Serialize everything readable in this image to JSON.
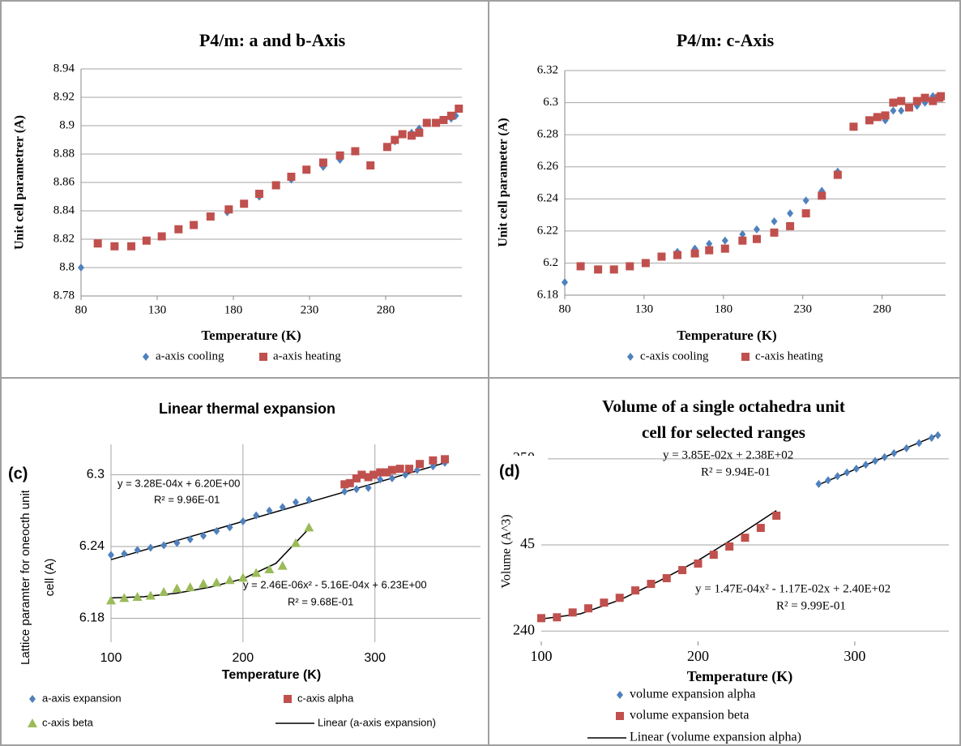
{
  "chart_data": [
    {
      "type": "scatter",
      "title": "P4/m: a and b-Axis",
      "x_label": "Temperature (K)",
      "y_label": "Unit cell parametrer (A)",
      "xlim": [
        80,
        330
      ],
      "xticks": [
        80,
        130,
        180,
        230,
        280
      ],
      "ylim": [
        8.78,
        8.94
      ],
      "yticks": [
        8.78,
        8.8,
        8.82,
        8.84,
        8.86,
        8.88,
        8.9,
        8.92,
        8.94
      ],
      "grid": "y",
      "series": [
        {
          "name": "a-axis cooling",
          "color": "#4f81bd",
          "marker": "diamond",
          "x": [
            80,
            165,
            176,
            197,
            218,
            239,
            250,
            286,
            297,
            302,
            313,
            323,
            326
          ],
          "values": [
            8.8,
            8.836,
            8.839,
            8.85,
            8.862,
            8.871,
            8.876,
            8.889,
            8.895,
            8.898,
            8.902,
            8.905,
            8.907
          ]
        },
        {
          "name": "a-axis heating",
          "color": "#c0504d",
          "marker": "square",
          "x": [
            91,
            102,
            113,
            123,
            133,
            144,
            154,
            165,
            177,
            187,
            197,
            208,
            218,
            228,
            239,
            250,
            260,
            270,
            281,
            286,
            291,
            297,
            302,
            307,
            313,
            318,
            323,
            328
          ],
          "values": [
            8.817,
            8.815,
            8.815,
            8.819,
            8.822,
            8.827,
            8.83,
            8.836,
            8.841,
            8.845,
            8.852,
            8.858,
            8.864,
            8.869,
            8.874,
            8.879,
            8.882,
            8.872,
            8.885,
            8.89,
            8.894,
            8.893,
            8.895,
            8.902,
            8.902,
            8.904,
            8.907,
            8.912
          ]
        }
      ]
    },
    {
      "type": "scatter",
      "title": "P4/m: c-Axis",
      "x_label": "Temperature (K)",
      "y_label": "Unit cell parameter (A)",
      "xlim": [
        80,
        320
      ],
      "xticks": [
        80,
        130,
        180,
        230,
        280
      ],
      "ylim": [
        6.18,
        6.32
      ],
      "yticks": [
        6.18,
        6.2,
        6.22,
        6.24,
        6.26,
        6.28,
        6.3,
        6.32
      ],
      "grid": "y",
      "series": [
        {
          "name": "c-axis cooling",
          "color": "#4f81bd",
          "marker": "diamond",
          "x": [
            80,
            90,
            101,
            111,
            121,
            131,
            141,
            151,
            162,
            171,
            181,
            192,
            201,
            212,
            222,
            232,
            242,
            252,
            262,
            272,
            282,
            287,
            292,
            297,
            302,
            307,
            312,
            316
          ],
          "values": [
            6.188,
            6.198,
            6.196,
            6.196,
            6.198,
            6.2,
            6.204,
            6.207,
            6.209,
            6.212,
            6.214,
            6.218,
            6.221,
            6.226,
            6.231,
            6.239,
            6.245,
            6.257,
            6.285,
            6.289,
            6.289,
            6.295,
            6.295,
            6.297,
            6.298,
            6.3,
            6.304,
            6.303
          ]
        },
        {
          "name": "c-axis heating",
          "color": "#c0504d",
          "marker": "square",
          "x": [
            90,
            101,
            111,
            121,
            131,
            141,
            151,
            162,
            171,
            181,
            192,
            201,
            212,
            222,
            232,
            242,
            252,
            262,
            272,
            277,
            282,
            287,
            292,
            297,
            302,
            307,
            312,
            316,
            317
          ],
          "values": [
            6.198,
            6.196,
            6.196,
            6.198,
            6.2,
            6.204,
            6.205,
            6.206,
            6.208,
            6.209,
            6.214,
            6.215,
            6.219,
            6.223,
            6.231,
            6.242,
            6.255,
            6.285,
            6.289,
            6.291,
            6.292,
            6.3,
            6.301,
            6.297,
            6.301,
            6.303,
            6.301,
            6.303,
            6.304
          ]
        }
      ]
    },
    {
      "type": "scatter",
      "title": "Linear thermal expansion",
      "x_label": "Temperature (K)",
      "y_label": [
        "Lattice paramter for oneocth unit",
        "cell (A)"
      ],
      "panel_label": "(c)",
      "xlim": [
        100,
        380
      ],
      "xticks": [
        100,
        200,
        300
      ],
      "ylim": [
        6.16,
        6.32
      ],
      "yticks": [
        6.18,
        6.24,
        6.3
      ],
      "grid": "both",
      "series": [
        {
          "name": "a-axis expansion",
          "color": "#4f81bd",
          "marker": "diamond",
          "x": [
            100,
            110,
            120,
            130,
            140,
            150,
            160,
            170,
            180,
            190,
            200,
            210,
            220,
            230,
            240,
            250,
            277,
            286,
            295,
            304,
            313,
            323,
            332,
            344,
            353
          ],
          "values": [
            6.233,
            6.234,
            6.237,
            6.239,
            6.241,
            6.243,
            6.246,
            6.249,
            6.253,
            6.256,
            6.261,
            6.266,
            6.27,
            6.273,
            6.277,
            6.279,
            6.286,
            6.288,
            6.289,
            6.296,
            6.297,
            6.3,
            6.304,
            6.307,
            6.31
          ]
        },
        {
          "name": "c-axis alpha",
          "color": "#c0504d",
          "marker": "square",
          "x": [
            277,
            281,
            286,
            290,
            295,
            299,
            304,
            309,
            313,
            319,
            326,
            334,
            344,
            353
          ],
          "values": [
            6.292,
            6.293,
            6.297,
            6.3,
            6.298,
            6.3,
            6.302,
            6.302,
            6.304,
            6.305,
            6.305,
            6.309,
            6.312,
            6.313
          ]
        },
        {
          "name": "c-axis beta",
          "color": "#9bbb59",
          "marker": "triangle",
          "x": [
            100,
            110,
            120,
            130,
            140,
            150,
            160,
            170,
            180,
            190,
            200,
            210,
            220,
            230,
            240,
            250
          ],
          "values": [
            6.195,
            6.197,
            6.198,
            6.199,
            6.202,
            6.205,
            6.206,
            6.209,
            6.21,
            6.212,
            6.214,
            6.218,
            6.221,
            6.224,
            6.243,
            6.256
          ]
        }
      ],
      "curves": [
        {
          "name": "Linear (a-axis expansion)",
          "color": "#000000",
          "x": [
            100,
            353
          ],
          "values": [
            6.229,
            6.31
          ]
        },
        {
          "color": "#000000",
          "x": [
            100,
            125,
            150,
            175,
            200,
            225,
            250
          ],
          "values": [
            6.197,
            6.198,
            6.201,
            6.206,
            6.213,
            6.226,
            6.255
          ]
        }
      ],
      "annotations": [
        "y = 3.28E-04x + 6.20E+00",
        "R² = 9.96E-01",
        "y = 2.46E-06x² - 5.16E-04x + 6.23E+00",
        "R² = 9.68E-01"
      ]
    },
    {
      "type": "scatter",
      "title": [
        "Volume of a single octahedra unit",
        "cell for selected ranges"
      ],
      "x_label": "Temperature (K)",
      "y_label": "Volume (A^3)",
      "panel_label": "(d)",
      "xlim": [
        100,
        360
      ],
      "xticks": [
        100,
        200,
        300
      ],
      "ylim": [
        239.4,
        251.5
      ],
      "yticks": [
        240,
        {
          "value": 245,
          "label": "45"
        },
        250
      ],
      "grid": "y",
      "series": [
        {
          "name": "volume expansion alpha",
          "color": "#4f81bd",
          "marker": "diamond",
          "x": [
            277,
            283,
            289,
            295,
            301,
            307,
            313,
            319,
            325,
            333,
            341,
            349,
            353
          ],
          "values": [
            248.54,
            248.76,
            248.99,
            249.21,
            249.43,
            249.66,
            249.88,
            250.1,
            250.33,
            250.62,
            250.92,
            251.22,
            251.37
          ]
        },
        {
          "name": "volume expansion beta",
          "color": "#c0504d",
          "marker": "square",
          "x": [
            100,
            110,
            120,
            130,
            140,
            150,
            160,
            170,
            180,
            190,
            200,
            210,
            220,
            230,
            240,
            250
          ],
          "values": [
            240.75,
            240.8,
            241.08,
            241.32,
            241.65,
            241.93,
            242.36,
            242.74,
            243.07,
            243.54,
            243.92,
            244.43,
            244.91,
            245.42,
            245.99,
            246.7
          ]
        }
      ],
      "curves": [
        {
          "name": "Linear (volume expansion alpha)",
          "color": "#000000",
          "x": [
            277,
            353
          ],
          "values": [
            248.5,
            251.4
          ]
        },
        {
          "color": "#000000",
          "x": [
            100,
            125,
            150,
            175,
            200,
            225,
            250
          ],
          "values": [
            240.7,
            241.0,
            241.8,
            242.9,
            244.1,
            245.5,
            247.0
          ]
        }
      ],
      "annotations": [
        "y = 3.85E-02x + 2.38E+02",
        "R² = 9.94E-01",
        "y = 1.47E-04x² - 1.17E-02x + 2.40E+02",
        "R² = 9.99E-01"
      ]
    }
  ]
}
